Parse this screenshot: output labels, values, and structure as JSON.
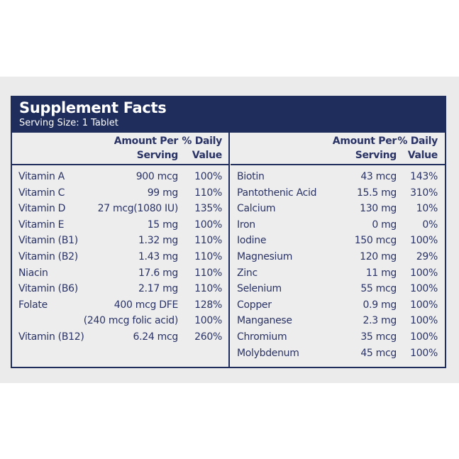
{
  "label": {
    "title": "Supplement Facts",
    "serving_size": "Serving Size: 1 Tablet",
    "colors": {
      "navy": "#1f2d5c",
      "text": "#2a3366",
      "panel": "#ededed"
    },
    "columns": {
      "amount_line1": "Amount Per",
      "amount_line2": "Serving",
      "dv_line1": "% Daily",
      "dv_line2": "Value"
    },
    "left_rows": [
      {
        "name": "Vitamin A",
        "amount": "900 mcg",
        "dv": "100%"
      },
      {
        "name": "Vitamin C",
        "amount": "99 mg",
        "dv": "110%"
      },
      {
        "name": "Vitamin D",
        "amount": "27 mcg(1080 IU)",
        "dv": "135%"
      },
      {
        "name": "Vitamin E",
        "amount": "15 mg",
        "dv": "100%"
      },
      {
        "name": "Vitamin (B1)",
        "amount": "1.32 mg",
        "dv": "110%"
      },
      {
        "name": "Vitamin (B2)",
        "amount": "1.43 mg",
        "dv": "110%"
      },
      {
        "name": "Niacin",
        "amount": "17.6 mg",
        "dv": "110%"
      },
      {
        "name": "Vitamin (B6)",
        "amount": "2.17 mg",
        "dv": "110%"
      },
      {
        "name": "Folate",
        "amount": "400 mcg DFE",
        "dv": "128%"
      },
      {
        "name": "",
        "amount": "(240 mcg folic acid)",
        "dv": "100%"
      },
      {
        "name": "Vitamin (B12)",
        "amount": "6.24 mcg",
        "dv": "260%"
      }
    ],
    "right_rows": [
      {
        "name": "Biotin",
        "amount": "43 mcg",
        "dv": "143%"
      },
      {
        "name": "Pantothenic Acid",
        "amount": "15.5 mg",
        "dv": "310%"
      },
      {
        "name": "Calcium",
        "amount": "130 mg",
        "dv": "10%"
      },
      {
        "name": "Iron",
        "amount": "0 mg",
        "dv": "0%"
      },
      {
        "name": "Iodine",
        "amount": "150 mcg",
        "dv": "100%"
      },
      {
        "name": "Magnesium",
        "amount": "120 mg",
        "dv": "29%"
      },
      {
        "name": "Zinc",
        "amount": "11 mg",
        "dv": "100%"
      },
      {
        "name": "Selenium",
        "amount": "55 mcg",
        "dv": "100%"
      },
      {
        "name": "Copper",
        "amount": "0.9 mg",
        "dv": "100%"
      },
      {
        "name": "Manganese",
        "amount": "2.3 mg",
        "dv": "100%"
      },
      {
        "name": "Chromium",
        "amount": "35 mcg",
        "dv": "100%"
      },
      {
        "name": "Molybdenum",
        "amount": "45 mcg",
        "dv": "100%"
      }
    ]
  }
}
